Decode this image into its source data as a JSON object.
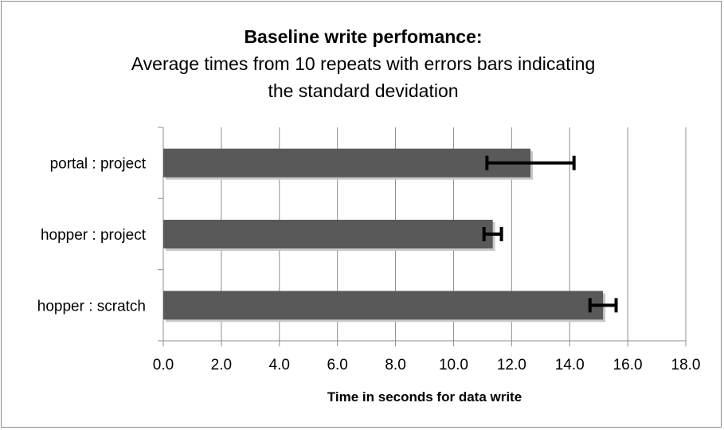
{
  "chart_data": {
    "type": "bar",
    "orientation": "horizontal",
    "title": "Baseline write perfomance:",
    "subtitle_lines": [
      "Average times from 10 repeats with errors bars indicating",
      "the standard devidation"
    ],
    "xlabel": "Time in seconds for data write",
    "ylabel": "",
    "xlim": [
      0,
      18
    ],
    "xticks": [
      "0.0",
      "2.0",
      "4.0",
      "6.0",
      "8.0",
      "10.0",
      "12.0",
      "14.0",
      "16.0",
      "18.0"
    ],
    "categories": [
      "portal : project",
      "hopper : project",
      "hopper : scratch"
    ],
    "values": [
      12.65,
      11.35,
      15.15
    ],
    "errors": [
      1.5,
      0.3,
      0.45
    ],
    "grid": true,
    "bar_color": "#595959",
    "error_bar_color": "#000000",
    "grid_color": "#8c8c8c"
  }
}
